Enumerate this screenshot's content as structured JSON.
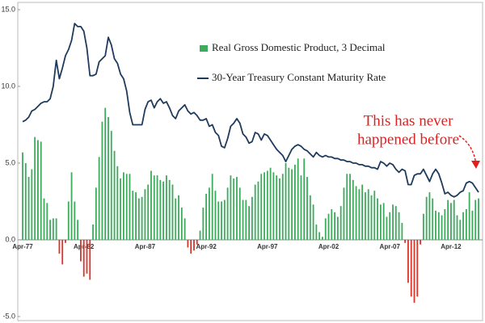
{
  "chart_data": {
    "type": "bar",
    "categories": [
      "Apr-77",
      null,
      null,
      null,
      null,
      null,
      null,
      null,
      null,
      null,
      null,
      null,
      null,
      null,
      null,
      null,
      null,
      null,
      null,
      null,
      "Apr-82",
      null,
      null,
      null,
      null,
      null,
      null,
      null,
      null,
      null,
      null,
      null,
      null,
      null,
      null,
      null,
      null,
      null,
      null,
      null,
      "Apr-87",
      null,
      null,
      null,
      null,
      null,
      null,
      null,
      null,
      null,
      null,
      null,
      null,
      null,
      null,
      null,
      null,
      null,
      null,
      null,
      "Apr-92",
      null,
      null,
      null,
      null,
      null,
      null,
      null,
      null,
      null,
      null,
      null,
      null,
      null,
      null,
      null,
      null,
      null,
      null,
      null,
      "Apr-97",
      null,
      null,
      null,
      null,
      null,
      null,
      null,
      null,
      null,
      null,
      null,
      null,
      null,
      null,
      null,
      null,
      null,
      null,
      null,
      "Apr-02",
      null,
      null,
      null,
      null,
      null,
      null,
      null,
      null,
      null,
      null,
      null,
      null,
      null,
      null,
      null,
      null,
      null,
      null,
      null,
      "Apr-07",
      null,
      null,
      null,
      null,
      null,
      null,
      null,
      null,
      null,
      null,
      null,
      null,
      null,
      null,
      null,
      null,
      null,
      null,
      null,
      "Apr-12",
      null,
      null,
      null,
      null,
      null,
      null,
      null,
      null,
      null
    ],
    "series": [
      {
        "name": "Real Gross Domestic Product, 3 Decimal",
        "type": "bar",
        "color": "#3daa5c",
        "negative_color": "#d9352b",
        "values": [
          5.7,
          5.0,
          4.1,
          4.6,
          6.7,
          6.5,
          6.4,
          2.7,
          2.4,
          1.3,
          1.4,
          1.4,
          -0.9,
          -1.6,
          -0.2,
          2.5,
          4.4,
          2.5,
          1.3,
          -1.4,
          -2.4,
          -2.2,
          -2.6,
          1.0,
          3.4,
          5.4,
          7.7,
          8.6,
          8.0,
          7.1,
          5.8,
          4.8,
          4.0,
          4.4,
          4.3,
          4.3,
          3.2,
          3.1,
          2.7,
          2.8,
          3.3,
          3.6,
          4.5,
          4.2,
          4.2,
          3.9,
          3.8,
          4.2,
          3.9,
          3.6,
          2.7,
          2.9,
          2.1,
          1.4,
          -0.5,
          -0.9,
          -0.7,
          -0.3,
          0.6,
          2.1,
          3.0,
          3.4,
          4.3,
          3.2,
          2.5,
          2.5,
          2.6,
          3.4,
          4.2,
          4.0,
          4.1,
          3.4,
          2.6,
          2.6,
          2.2,
          2.8,
          3.6,
          3.8,
          4.3,
          4.4,
          4.5,
          4.7,
          4.4,
          4.2,
          4.0,
          4.3,
          5.0,
          4.7,
          4.6,
          4.9,
          5.3,
          4.2,
          5.3,
          4.1,
          2.9,
          2.3,
          1.0,
          0.5,
          0.2,
          1.4,
          1.7,
          2.0,
          1.8,
          1.5,
          2.2,
          3.4,
          4.3,
          4.3,
          3.9,
          3.5,
          3.3,
          3.6,
          3.1,
          3.3,
          2.9,
          3.2,
          2.7,
          2.3,
          2.4,
          1.5,
          1.8,
          2.3,
          2.2,
          1.8,
          1.1,
          -0.2,
          -2.8,
          -3.7,
          -4.1,
          -3.7,
          -0.3,
          1.7,
          2.8,
          3.1,
          2.7,
          1.9,
          1.8,
          1.6,
          2.0,
          2.6,
          2.4,
          2.6,
          1.6,
          1.3,
          1.8,
          2.0,
          3.1,
          1.9,
          2.6,
          2.7
        ]
      },
      {
        "name": "30-Year Treasury Constant Maturity Rate",
        "type": "line",
        "color": "#1e3a5c",
        "values": [
          7.7,
          7.8,
          8.0,
          8.4,
          8.5,
          8.7,
          8.9,
          9.0,
          9.0,
          9.2,
          10.0,
          11.7,
          10.5,
          11.2,
          12.0,
          12.4,
          13.0,
          14.1,
          13.9,
          13.9,
          13.6,
          12.5,
          10.7,
          10.7,
          10.8,
          11.6,
          11.8,
          12.0,
          13.2,
          12.7,
          11.8,
          11.5,
          10.8,
          10.5,
          9.7,
          8.3,
          7.5,
          7.5,
          7.5,
          7.5,
          8.5,
          9.0,
          9.1,
          8.6,
          9.0,
          9.2,
          8.9,
          9.0,
          8.6,
          8.1,
          7.9,
          8.4,
          8.6,
          8.8,
          8.4,
          8.2,
          8.3,
          8.1,
          7.8,
          7.8,
          7.9,
          7.4,
          7.5,
          7.0,
          6.8,
          6.1,
          6.0,
          6.6,
          7.4,
          7.6,
          7.9,
          7.6,
          6.9,
          6.7,
          6.3,
          6.4,
          7.0,
          6.9,
          6.5,
          6.9,
          6.8,
          6.5,
          6.2,
          5.9,
          5.7,
          5.5,
          5.1,
          5.5,
          5.9,
          6.1,
          6.2,
          6.1,
          5.9,
          5.8,
          5.6,
          5.4,
          5.7,
          5.5,
          5.4,
          5.5,
          5.4,
          5.4,
          5.3,
          5.3,
          5.2,
          5.2,
          5.1,
          5.1,
          5.0,
          5.0,
          4.9,
          4.9,
          4.8,
          4.8,
          4.7,
          4.7,
          4.6,
          5.1,
          5.0,
          4.8,
          5.0,
          4.9,
          4.6,
          4.4,
          4.6,
          4.5,
          3.6,
          3.6,
          4.2,
          4.3,
          4.3,
          4.6,
          4.2,
          3.8,
          4.3,
          4.6,
          4.3,
          3.7,
          3.0,
          3.1,
          2.9,
          2.8,
          2.9,
          3.1,
          3.2,
          3.7,
          3.8,
          3.7,
          3.4,
          3.1
        ]
      }
    ],
    "ylim": [
      -5,
      15.4
    ],
    "yticks": [
      {
        "value": -5,
        "label": "-5.0"
      },
      {
        "value": 0,
        "label": "0.0"
      },
      {
        "value": 5,
        "label": "5.0"
      },
      {
        "value": 10,
        "label": "10.0"
      },
      {
        "value": 15,
        "label": "15.0"
      }
    ],
    "grid": false,
    "annotation": [
      "This has never",
      "happened before"
    ],
    "annotation_color": "#e02020"
  }
}
